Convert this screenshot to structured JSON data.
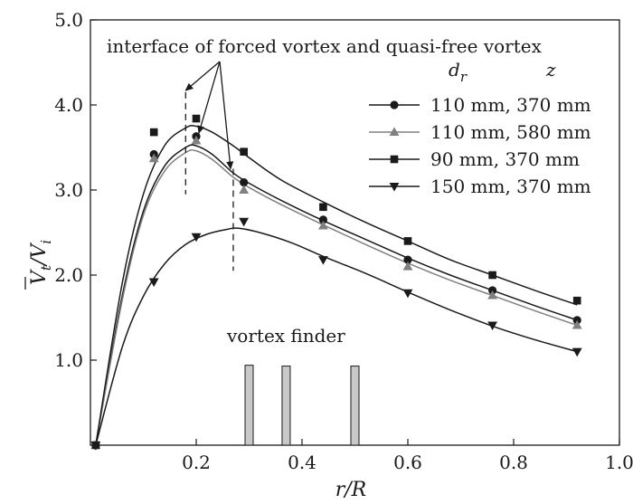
{
  "chart_data": {
    "type": "scatter",
    "xlabel": "r/R",
    "ylabel_main": "V",
    "ylabel_sub_t": "t",
    "ylabel_slash": "/V",
    "ylabel_sub_i": "i",
    "xlim": [
      0.0,
      1.0
    ],
    "ylim": [
      0.0,
      5.0
    ],
    "xticks": [
      {
        "value": 0.2,
        "label": "0.2"
      },
      {
        "value": 0.4,
        "label": "0.4"
      },
      {
        "value": 0.6,
        "label": "0.6"
      },
      {
        "value": 0.8,
        "label": "0.8"
      },
      {
        "value": 1.0,
        "label": "1.0"
      }
    ],
    "yticks": [
      {
        "value": 1.0,
        "label": "1.0"
      },
      {
        "value": 2.0,
        "label": "2.0"
      },
      {
        "value": 3.0,
        "label": "3.0"
      },
      {
        "value": 4.0,
        "label": "4.0"
      },
      {
        "value": 5.0,
        "label": "5.0"
      }
    ],
    "legend_header_dr_main": "d",
    "legend_header_dr_sub": "r",
    "legend_header_z": "z",
    "legend_position": "top-right",
    "annotation": "interface of forced vortex and quasi-free vortex",
    "vortex_finder_label": "vortex finder",
    "vortex_finder_bars": [
      {
        "x": 0.3,
        "height": 0.94
      },
      {
        "x": 0.37,
        "height": 0.93
      },
      {
        "x": 0.5,
        "height": 0.93
      }
    ],
    "interface_lines": [
      {
        "x": 0.18,
        "y_top": 4.15,
        "y_bottom": 2.95
      },
      {
        "x": 0.27,
        "y_top": 3.25,
        "y_bottom": 2.05
      }
    ],
    "series": [
      {
        "name": "110 mm, 370 mm",
        "marker": "circle",
        "color": "#1a1a1a",
        "points": [
          [
            0.01,
            0.0
          ],
          [
            0.12,
            3.42
          ],
          [
            0.2,
            3.63
          ],
          [
            0.29,
            3.09
          ],
          [
            0.44,
            2.65
          ],
          [
            0.6,
            2.18
          ],
          [
            0.76,
            1.82
          ],
          [
            0.92,
            1.47
          ]
        ],
        "curve": [
          [
            0.01,
            0.0
          ],
          [
            0.06,
            1.75
          ],
          [
            0.1,
            2.75
          ],
          [
            0.14,
            3.28
          ],
          [
            0.18,
            3.5
          ],
          [
            0.2,
            3.52
          ],
          [
            0.23,
            3.42
          ],
          [
            0.27,
            3.2
          ],
          [
            0.3,
            3.08
          ],
          [
            0.36,
            2.88
          ],
          [
            0.44,
            2.64
          ],
          [
            0.52,
            2.42
          ],
          [
            0.6,
            2.2
          ],
          [
            0.68,
            2.0
          ],
          [
            0.76,
            1.82
          ],
          [
            0.84,
            1.64
          ],
          [
            0.92,
            1.47
          ]
        ]
      },
      {
        "name": "110 mm, 580 mm",
        "marker": "triangle-up",
        "color": "#808080",
        "points": [
          [
            0.01,
            0.0
          ],
          [
            0.12,
            3.37
          ],
          [
            0.2,
            3.58
          ],
          [
            0.29,
            3.0
          ],
          [
            0.44,
            2.58
          ],
          [
            0.6,
            2.1
          ],
          [
            0.76,
            1.76
          ],
          [
            0.92,
            1.41
          ]
        ],
        "curve": [
          [
            0.01,
            0.0
          ],
          [
            0.06,
            1.7
          ],
          [
            0.1,
            2.7
          ],
          [
            0.14,
            3.22
          ],
          [
            0.18,
            3.44
          ],
          [
            0.2,
            3.46
          ],
          [
            0.23,
            3.36
          ],
          [
            0.27,
            3.15
          ],
          [
            0.3,
            3.03
          ],
          [
            0.36,
            2.83
          ],
          [
            0.44,
            2.59
          ],
          [
            0.52,
            2.36
          ],
          [
            0.6,
            2.14
          ],
          [
            0.68,
            1.94
          ],
          [
            0.76,
            1.76
          ],
          [
            0.84,
            1.58
          ],
          [
            0.92,
            1.41
          ]
        ]
      },
      {
        "name": "90 mm, 370 mm",
        "marker": "square",
        "color": "#1a1a1a",
        "points": [
          [
            0.01,
            0.0
          ],
          [
            0.12,
            3.68
          ],
          [
            0.2,
            3.84
          ],
          [
            0.29,
            3.45
          ],
          [
            0.44,
            2.8
          ],
          [
            0.6,
            2.4
          ],
          [
            0.76,
            2.0
          ],
          [
            0.92,
            1.7
          ]
        ],
        "curve": [
          [
            0.01,
            0.0
          ],
          [
            0.06,
            1.9
          ],
          [
            0.1,
            2.95
          ],
          [
            0.14,
            3.52
          ],
          [
            0.18,
            3.73
          ],
          [
            0.2,
            3.75
          ],
          [
            0.23,
            3.68
          ],
          [
            0.27,
            3.52
          ],
          [
            0.3,
            3.38
          ],
          [
            0.36,
            3.12
          ],
          [
            0.44,
            2.86
          ],
          [
            0.52,
            2.62
          ],
          [
            0.6,
            2.4
          ],
          [
            0.68,
            2.18
          ],
          [
            0.76,
            2.0
          ],
          [
            0.84,
            1.82
          ],
          [
            0.92,
            1.65
          ]
        ]
      },
      {
        "name": "150 mm, 370 mm",
        "marker": "triangle-down",
        "color": "#1a1a1a",
        "points": [
          [
            0.01,
            0.0
          ],
          [
            0.12,
            1.92
          ],
          [
            0.2,
            2.45
          ],
          [
            0.29,
            2.63
          ],
          [
            0.44,
            2.18
          ],
          [
            0.6,
            1.79
          ],
          [
            0.76,
            1.41
          ],
          [
            0.92,
            1.1
          ]
        ],
        "curve": [
          [
            0.01,
            0.0
          ],
          [
            0.06,
            1.15
          ],
          [
            0.1,
            1.75
          ],
          [
            0.14,
            2.13
          ],
          [
            0.18,
            2.36
          ],
          [
            0.22,
            2.48
          ],
          [
            0.26,
            2.54
          ],
          [
            0.28,
            2.55
          ],
          [
            0.32,
            2.5
          ],
          [
            0.38,
            2.38
          ],
          [
            0.44,
            2.22
          ],
          [
            0.52,
            2.02
          ],
          [
            0.6,
            1.8
          ],
          [
            0.68,
            1.59
          ],
          [
            0.76,
            1.4
          ],
          [
            0.84,
            1.24
          ],
          [
            0.92,
            1.1
          ]
        ]
      }
    ]
  }
}
